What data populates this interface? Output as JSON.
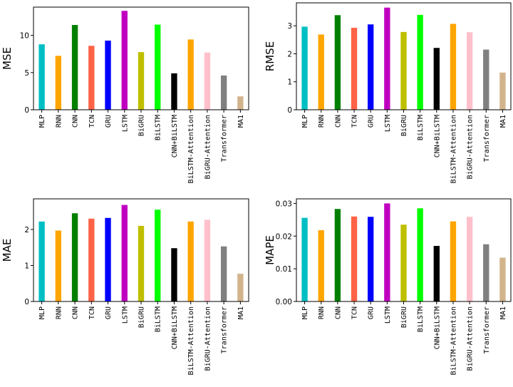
{
  "chart_data": [
    {
      "type": "bar",
      "ylabel": "MSE",
      "ylim": [
        0,
        13.8
      ],
      "yticks": [
        0,
        5,
        10
      ],
      "ytick_labels": [
        "0",
        "5",
        "10"
      ],
      "categories": [
        "MLP",
        "RNN",
        "CNN",
        "TCN",
        "GRU",
        "LSTM",
        "BiGRU",
        "BiLSTM",
        "CNN+BiLSTM",
        "BiLSTM-Attention",
        "BiGRU-Attention",
        "Transformer",
        "MA1"
      ],
      "values": [
        8.8,
        7.25,
        11.4,
        8.6,
        9.3,
        13.3,
        7.75,
        11.45,
        4.9,
        9.45,
        7.7,
        4.6,
        1.8
      ],
      "colors": [
        "#00BFC4",
        "#FFA500",
        "#008000",
        "#FF6347",
        "#0000FF",
        "#C000C0",
        "#BFBF00",
        "#00FF00",
        "#000000",
        "#FFA500",
        "#FFC0CB",
        "#808080",
        "#D2B48C"
      ]
    },
    {
      "type": "bar",
      "ylabel": "RMSE",
      "ylim": [
        0,
        3.82
      ],
      "yticks": [
        0,
        1,
        2,
        3
      ],
      "ytick_labels": [
        "0",
        "1",
        "2",
        "3"
      ],
      "categories": [
        "MLP",
        "RNN",
        "CNN",
        "TCN",
        "GRU",
        "LSTM",
        "BiGRU",
        "BiLSTM",
        "CNN+BiLSTM",
        "BiLSTM-Attention",
        "BiGRU-Attention",
        "Transformer",
        "MA1"
      ],
      "values": [
        2.97,
        2.69,
        3.38,
        2.93,
        3.05,
        3.65,
        2.78,
        3.39,
        2.21,
        3.07,
        2.77,
        2.15,
        1.33
      ],
      "colors": [
        "#00BFC4",
        "#FFA500",
        "#008000",
        "#FF6347",
        "#0000FF",
        "#C000C0",
        "#BFBF00",
        "#00FF00",
        "#000000",
        "#FFA500",
        "#FFC0CB",
        "#808080",
        "#D2B48C"
      ]
    },
    {
      "type": "bar",
      "ylabel": "MAE",
      "ylim": [
        0,
        2.85
      ],
      "yticks": [
        0,
        1,
        2
      ],
      "ytick_labels": [
        "0",
        "1",
        "2"
      ],
      "categories": [
        "MLP",
        "RNN",
        "CNN",
        "TCN",
        "GRU",
        "LSTM",
        "BiGRU",
        "BiLSTM",
        "CNN+BiLSTM",
        "BiLSTM-Attention",
        "BiGRU-Attention",
        "Transformer",
        "MA1"
      ],
      "values": [
        2.22,
        1.97,
        2.45,
        2.3,
        2.32,
        2.68,
        2.1,
        2.55,
        1.48,
        2.22,
        2.27,
        1.53,
        0.77
      ],
      "colors": [
        "#00BFC4",
        "#FFA500",
        "#008000",
        "#FF6347",
        "#0000FF",
        "#C000C0",
        "#BFBF00",
        "#00FF00",
        "#000000",
        "#FFA500",
        "#FFC0CB",
        "#808080",
        "#D2B48C"
      ]
    },
    {
      "type": "bar",
      "ylabel": "MAPE",
      "ylim": [
        0,
        0.0314
      ],
      "yticks": [
        0,
        0.01,
        0.02,
        0.03
      ],
      "ytick_labels": [
        "0.00",
        "0.01",
        "0.02",
        "0.03"
      ],
      "categories": [
        "MLP",
        "RNN",
        "CNN",
        "TCN",
        "GRU",
        "LSTM",
        "BiGRU",
        "BiLSTM",
        "CNN+BiLSTM",
        "BiLSTM-Attention",
        "BiGRU-Attention",
        "Transformer",
        "MA1"
      ],
      "values": [
        0.0256,
        0.0218,
        0.0283,
        0.026,
        0.0259,
        0.03,
        0.0235,
        0.0285,
        0.017,
        0.0245,
        0.0259,
        0.0175,
        0.0134
      ],
      "colors": [
        "#00BFC4",
        "#FFA500",
        "#008000",
        "#FF6347",
        "#0000FF",
        "#C000C0",
        "#BFBF00",
        "#00FF00",
        "#000000",
        "#FFA500",
        "#FFC0CB",
        "#808080",
        "#D2B48C"
      ]
    }
  ]
}
